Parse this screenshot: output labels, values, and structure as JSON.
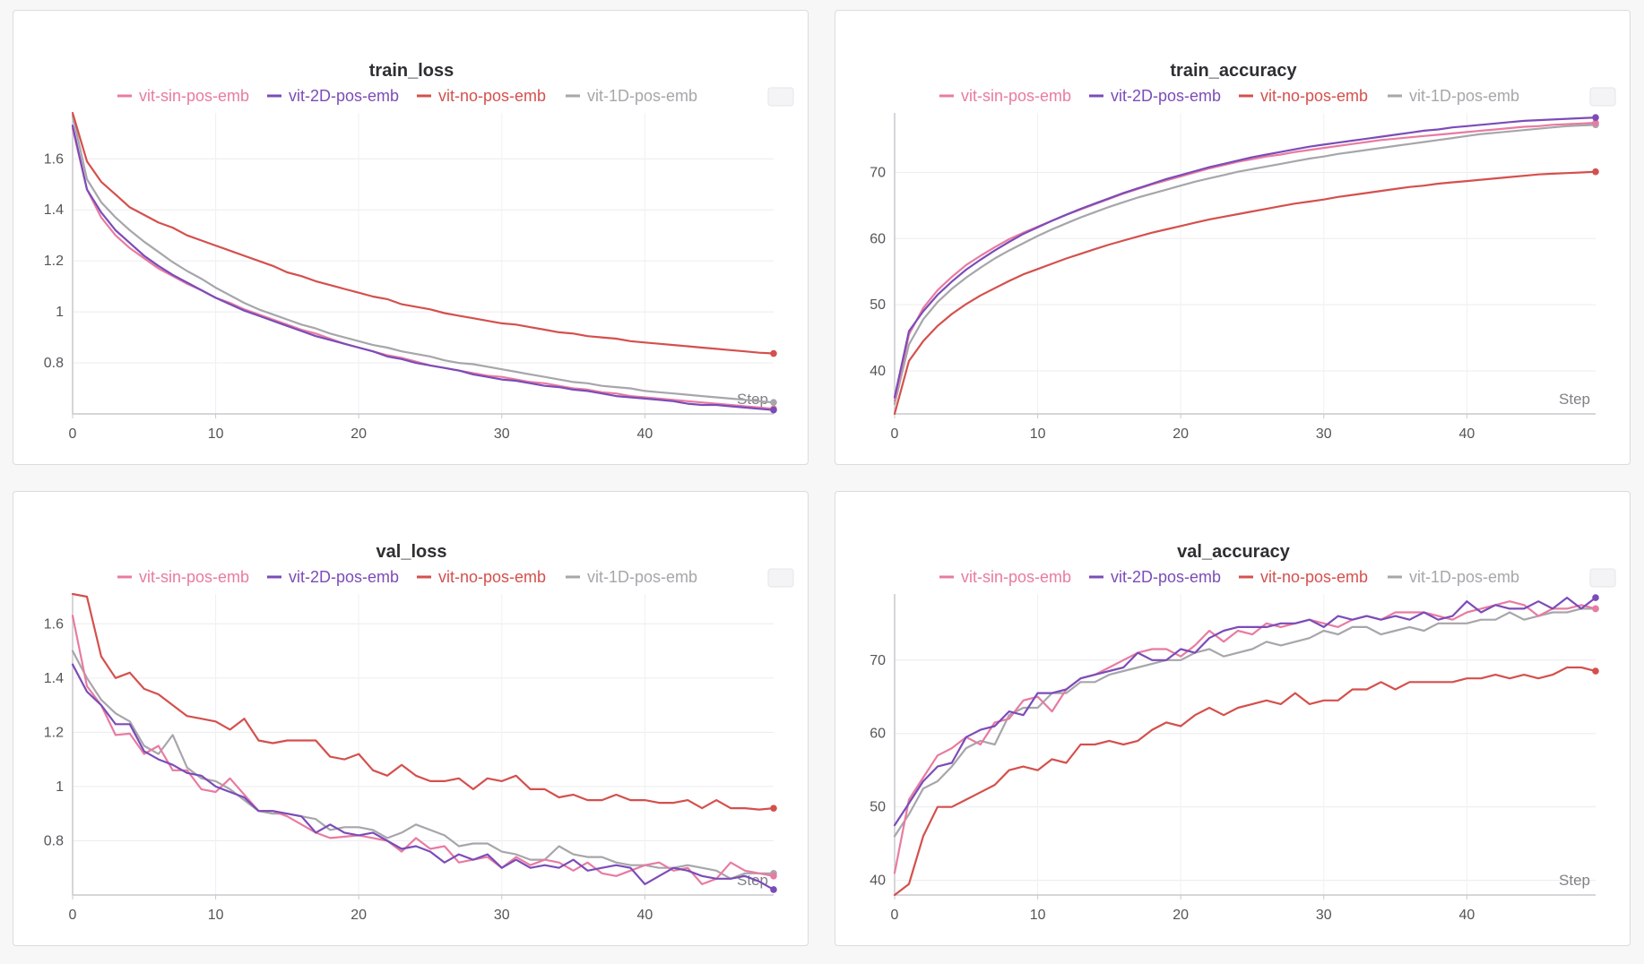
{
  "colors": {
    "vit-sin-pos-emb": "#e87ba1",
    "vit-2D-pos-emb": "#7b4cb8",
    "vit-no-pos-emb": "#d4504d",
    "vit-1D-pos-emb": "#a6a6ab"
  },
  "chart_data": [
    {
      "type": "line",
      "title": "train_loss",
      "xlabel": "Step",
      "ylabel": "",
      "xlim": [
        0,
        49
      ],
      "ylim": [
        0.6,
        1.78
      ],
      "xticks": [
        0,
        10,
        20,
        30,
        40
      ],
      "yticks": [
        0.8,
        1,
        1.2,
        1.4,
        1.6
      ],
      "ytick_labels": [
        "0.8",
        "1",
        "1.2",
        "1.4",
        "1.6"
      ],
      "legend": [
        "vit-sin-pos-emb",
        "vit-2D-pos-emb",
        "vit-no-pos-emb",
        "vit-1D-pos-emb"
      ],
      "series": [
        {
          "name": "vit-sin-pos-emb",
          "values": [
            1.72,
            1.48,
            1.37,
            1.3,
            1.25,
            1.21,
            1.17,
            1.14,
            1.11,
            1.085,
            1.055,
            1.035,
            1.01,
            0.99,
            0.97,
            0.95,
            0.93,
            0.915,
            0.895,
            0.875,
            0.86,
            0.845,
            0.83,
            0.82,
            0.805,
            0.79,
            0.78,
            0.77,
            0.76,
            0.75,
            0.745,
            0.735,
            0.725,
            0.72,
            0.71,
            0.7,
            0.695,
            0.685,
            0.68,
            0.67,
            0.665,
            0.66,
            0.655,
            0.65,
            0.645,
            0.64,
            0.635,
            0.63,
            0.625,
            0.62
          ]
        },
        {
          "name": "vit-2D-pos-emb",
          "values": [
            1.73,
            1.48,
            1.39,
            1.32,
            1.27,
            1.22,
            1.18,
            1.145,
            1.115,
            1.085,
            1.055,
            1.03,
            1.005,
            0.985,
            0.965,
            0.945,
            0.925,
            0.905,
            0.89,
            0.875,
            0.86,
            0.845,
            0.825,
            0.815,
            0.8,
            0.79,
            0.78,
            0.77,
            0.755,
            0.745,
            0.735,
            0.73,
            0.72,
            0.71,
            0.705,
            0.695,
            0.69,
            0.68,
            0.67,
            0.665,
            0.66,
            0.655,
            0.65,
            0.64,
            0.635,
            0.635,
            0.63,
            0.625,
            0.62,
            0.615
          ]
        },
        {
          "name": "vit-no-pos-emb",
          "values": [
            1.78,
            1.59,
            1.51,
            1.46,
            1.41,
            1.38,
            1.35,
            1.33,
            1.3,
            1.28,
            1.26,
            1.24,
            1.22,
            1.2,
            1.18,
            1.155,
            1.14,
            1.12,
            1.105,
            1.09,
            1.075,
            1.06,
            1.05,
            1.03,
            1.02,
            1.01,
            0.995,
            0.985,
            0.975,
            0.965,
            0.955,
            0.95,
            0.94,
            0.93,
            0.92,
            0.915,
            0.905,
            0.9,
            0.895,
            0.885,
            0.88,
            0.875,
            0.87,
            0.865,
            0.86,
            0.855,
            0.85,
            0.845,
            0.84,
            0.837
          ]
        },
        {
          "name": "vit-1D-pos-emb",
          "values": [
            1.77,
            1.52,
            1.43,
            1.37,
            1.32,
            1.275,
            1.235,
            1.195,
            1.16,
            1.13,
            1.095,
            1.065,
            1.035,
            1.01,
            0.99,
            0.97,
            0.95,
            0.935,
            0.915,
            0.9,
            0.885,
            0.87,
            0.86,
            0.845,
            0.835,
            0.825,
            0.81,
            0.8,
            0.795,
            0.785,
            0.775,
            0.765,
            0.755,
            0.745,
            0.735,
            0.725,
            0.72,
            0.71,
            0.705,
            0.7,
            0.69,
            0.685,
            0.68,
            0.675,
            0.67,
            0.665,
            0.66,
            0.655,
            0.65,
            0.645
          ]
        }
      ]
    },
    {
      "type": "line",
      "title": "train_accuracy",
      "xlabel": "Step",
      "ylabel": "",
      "xlim": [
        0,
        49
      ],
      "ylim": [
        33.5,
        79
      ],
      "xticks": [
        0,
        10,
        20,
        30,
        40
      ],
      "yticks": [
        40,
        50,
        60,
        70
      ],
      "ytick_labels": [
        "40",
        "50",
        "60",
        "70"
      ],
      "legend": [
        "vit-sin-pos-emb",
        "vit-2D-pos-emb",
        "vit-no-pos-emb",
        "vit-1D-pos-emb"
      ],
      "series": [
        {
          "name": "vit-sin-pos-emb",
          "values": [
            35.5,
            45.5,
            49.5,
            52.2,
            54.2,
            56.0,
            57.4,
            58.7,
            59.9,
            60.9,
            61.8,
            62.7,
            63.6,
            64.4,
            65.2,
            66.0,
            66.8,
            67.5,
            68.2,
            68.8,
            69.4,
            70.0,
            70.6,
            71.1,
            71.6,
            72.0,
            72.4,
            72.7,
            73.1,
            73.4,
            73.7,
            74.0,
            74.3,
            74.6,
            74.9,
            75.1,
            75.3,
            75.5,
            75.7,
            75.9,
            76.1,
            76.3,
            76.5,
            76.7,
            76.9,
            77.0,
            77.2,
            77.3,
            77.4,
            77.5
          ]
        },
        {
          "name": "vit-2D-pos-emb",
          "values": [
            36.0,
            46.0,
            49.0,
            51.5,
            53.5,
            55.3,
            56.8,
            58.2,
            59.5,
            60.7,
            61.7,
            62.7,
            63.6,
            64.5,
            65.3,
            66.1,
            66.9,
            67.6,
            68.3,
            69.0,
            69.6,
            70.2,
            70.8,
            71.3,
            71.8,
            72.3,
            72.7,
            73.1,
            73.5,
            73.9,
            74.2,
            74.5,
            74.8,
            75.1,
            75.4,
            75.7,
            76.0,
            76.3,
            76.5,
            76.8,
            77.0,
            77.2,
            77.4,
            77.6,
            77.8,
            77.9,
            78.0,
            78.1,
            78.2,
            78.3
          ]
        },
        {
          "name": "vit-no-pos-emb",
          "values": [
            33.5,
            41.5,
            44.5,
            46.8,
            48.6,
            50.1,
            51.4,
            52.5,
            53.6,
            54.6,
            55.4,
            56.2,
            57.0,
            57.7,
            58.4,
            59.1,
            59.7,
            60.3,
            60.9,
            61.4,
            61.9,
            62.4,
            62.9,
            63.3,
            63.7,
            64.1,
            64.5,
            64.9,
            65.3,
            65.6,
            65.9,
            66.3,
            66.6,
            66.9,
            67.2,
            67.5,
            67.8,
            68.0,
            68.3,
            68.5,
            68.7,
            68.9,
            69.1,
            69.3,
            69.5,
            69.7,
            69.8,
            69.9,
            70.0,
            70.1
          ]
        },
        {
          "name": "vit-1D-pos-emb",
          "values": [
            35.0,
            44.0,
            47.8,
            50.4,
            52.4,
            54.1,
            55.6,
            57.0,
            58.2,
            59.3,
            60.4,
            61.4,
            62.3,
            63.2,
            64.0,
            64.8,
            65.5,
            66.2,
            66.8,
            67.4,
            68.0,
            68.6,
            69.1,
            69.6,
            70.1,
            70.5,
            70.9,
            71.3,
            71.7,
            72.1,
            72.4,
            72.8,
            73.1,
            73.4,
            73.7,
            74.0,
            74.3,
            74.6,
            74.9,
            75.2,
            75.5,
            75.8,
            76.0,
            76.2,
            76.4,
            76.6,
            76.8,
            77.0,
            77.1,
            77.2
          ]
        }
      ]
    },
    {
      "type": "line",
      "title": "val_loss",
      "xlabel": "Step",
      "ylabel": "",
      "xlim": [
        0,
        49
      ],
      "ylim": [
        0.6,
        1.71
      ],
      "xticks": [
        0,
        10,
        20,
        30,
        40
      ],
      "yticks": [
        0.8,
        1,
        1.2,
        1.4,
        1.6
      ],
      "ytick_labels": [
        "0.8",
        "1",
        "1.2",
        "1.4",
        "1.6"
      ],
      "legend": [
        "vit-sin-pos-emb",
        "vit-2D-pos-emb",
        "vit-no-pos-emb",
        "vit-1D-pos-emb"
      ],
      "series": [
        {
          "name": "vit-sin-pos-emb",
          "values": [
            1.63,
            1.37,
            1.3,
            1.19,
            1.195,
            1.12,
            1.15,
            1.06,
            1.06,
            0.99,
            0.98,
            1.03,
            0.97,
            0.91,
            0.91,
            0.89,
            0.86,
            0.83,
            0.81,
            0.815,
            0.82,
            0.81,
            0.8,
            0.76,
            0.81,
            0.77,
            0.78,
            0.72,
            0.73,
            0.74,
            0.7,
            0.74,
            0.71,
            0.73,
            0.72,
            0.69,
            0.72,
            0.68,
            0.67,
            0.69,
            0.71,
            0.72,
            0.69,
            0.7,
            0.64,
            0.66,
            0.72,
            0.69,
            0.68,
            0.67
          ]
        },
        {
          "name": "vit-2D-pos-emb",
          "values": [
            1.45,
            1.35,
            1.3,
            1.23,
            1.23,
            1.13,
            1.1,
            1.08,
            1.05,
            1.04,
            1.0,
            0.98,
            0.96,
            0.91,
            0.91,
            0.9,
            0.89,
            0.83,
            0.86,
            0.83,
            0.82,
            0.83,
            0.8,
            0.77,
            0.78,
            0.76,
            0.72,
            0.75,
            0.73,
            0.75,
            0.7,
            0.73,
            0.7,
            0.71,
            0.7,
            0.73,
            0.69,
            0.7,
            0.71,
            0.7,
            0.64,
            0.67,
            0.7,
            0.69,
            0.67,
            0.66,
            0.66,
            0.67,
            0.65,
            0.62
          ]
        },
        {
          "name": "vit-no-pos-emb",
          "values": [
            1.71,
            1.7,
            1.48,
            1.4,
            1.42,
            1.36,
            1.34,
            1.3,
            1.26,
            1.25,
            1.24,
            1.21,
            1.25,
            1.17,
            1.16,
            1.17,
            1.17,
            1.17,
            1.11,
            1.1,
            1.12,
            1.06,
            1.04,
            1.08,
            1.04,
            1.02,
            1.02,
            1.03,
            0.99,
            1.03,
            1.02,
            1.04,
            0.99,
            0.99,
            0.96,
            0.97,
            0.95,
            0.95,
            0.97,
            0.95,
            0.95,
            0.94,
            0.94,
            0.95,
            0.92,
            0.95,
            0.92,
            0.92,
            0.915,
            0.92
          ]
        },
        {
          "name": "vit-1D-pos-emb",
          "values": [
            1.5,
            1.4,
            1.32,
            1.27,
            1.24,
            1.15,
            1.12,
            1.19,
            1.07,
            1.03,
            1.02,
            0.99,
            0.95,
            0.91,
            0.9,
            0.9,
            0.89,
            0.88,
            0.84,
            0.85,
            0.85,
            0.84,
            0.81,
            0.83,
            0.86,
            0.84,
            0.82,
            0.78,
            0.79,
            0.79,
            0.76,
            0.75,
            0.73,
            0.73,
            0.78,
            0.75,
            0.74,
            0.74,
            0.72,
            0.71,
            0.71,
            0.7,
            0.7,
            0.71,
            0.7,
            0.69,
            0.66,
            0.68,
            0.68,
            0.68
          ]
        }
      ]
    },
    {
      "type": "line",
      "title": "val_accuracy",
      "xlabel": "Step",
      "ylabel": "",
      "xlim": [
        0,
        49
      ],
      "ylim": [
        38.0,
        79
      ],
      "xticks": [
        0,
        10,
        20,
        30,
        40
      ],
      "yticks": [
        40,
        50,
        60,
        70
      ],
      "ytick_labels": [
        "40",
        "50",
        "60",
        "70"
      ],
      "legend": [
        "vit-sin-pos-emb",
        "vit-2D-pos-emb",
        "vit-no-pos-emb",
        "vit-1D-pos-emb"
      ],
      "series": [
        {
          "name": "vit-sin-pos-emb",
          "values": [
            41.0,
            51.0,
            54.0,
            57.0,
            58.0,
            59.5,
            58.5,
            61.5,
            62.0,
            64.5,
            65.0,
            63.0,
            66.0,
            67.5,
            68.0,
            69.0,
            70.0,
            71.0,
            71.5,
            71.5,
            70.5,
            72.0,
            74.0,
            72.5,
            74.0,
            73.5,
            75.0,
            74.5,
            75.0,
            75.5,
            75.0,
            74.5,
            75.5,
            76.0,
            75.5,
            76.5,
            76.5,
            76.5,
            76.0,
            75.5,
            76.5,
            77.0,
            77.5,
            78.0,
            77.5,
            76.0,
            77.0,
            77.0,
            77.5,
            77.0
          ]
        },
        {
          "name": "vit-2D-pos-emb",
          "values": [
            47.5,
            50.5,
            53.5,
            55.5,
            56.0,
            59.5,
            60.5,
            61.0,
            63.0,
            62.5,
            65.5,
            65.5,
            66.0,
            67.5,
            68.0,
            68.5,
            69.0,
            71.0,
            70.0,
            70.0,
            71.5,
            71.0,
            73.0,
            74.0,
            74.5,
            74.5,
            74.5,
            75.0,
            75.0,
            75.5,
            74.5,
            76.0,
            75.5,
            76.0,
            75.5,
            76.0,
            75.5,
            76.5,
            75.5,
            76.0,
            78.0,
            76.5,
            77.5,
            77.0,
            77.0,
            78.0,
            77.0,
            78.5,
            77.0,
            78.5
          ]
        },
        {
          "name": "vit-no-pos-emb",
          "values": [
            38.0,
            39.5,
            46.0,
            50.0,
            50.0,
            51.0,
            52.0,
            53.0,
            55.0,
            55.5,
            55.0,
            56.5,
            56.0,
            58.5,
            58.5,
            59.0,
            58.5,
            59.0,
            60.5,
            61.5,
            61.0,
            62.5,
            63.5,
            62.5,
            63.5,
            64.0,
            64.5,
            64.0,
            65.5,
            64.0,
            64.5,
            64.5,
            66.0,
            66.0,
            67.0,
            66.0,
            67.0,
            67.0,
            67.0,
            67.0,
            67.5,
            67.5,
            68.0,
            67.5,
            68.0,
            67.5,
            68.0,
            69.0,
            69.0,
            68.5
          ]
        },
        {
          "name": "vit-1D-pos-emb",
          "values": [
            46.0,
            49.0,
            52.5,
            53.5,
            55.5,
            58.0,
            59.0,
            58.5,
            62.5,
            63.5,
            63.5,
            65.5,
            65.5,
            67.0,
            67.0,
            68.0,
            68.5,
            69.0,
            69.5,
            70.0,
            70.0,
            71.0,
            71.5,
            70.5,
            71.0,
            71.5,
            72.5,
            72.0,
            72.5,
            73.0,
            74.0,
            73.5,
            74.5,
            74.5,
            73.5,
            74.0,
            74.5,
            74.0,
            75.0,
            75.0,
            75.0,
            75.5,
            75.5,
            76.5,
            75.5,
            76.0,
            76.5,
            76.5,
            77.0,
            77.0
          ]
        }
      ]
    }
  ]
}
